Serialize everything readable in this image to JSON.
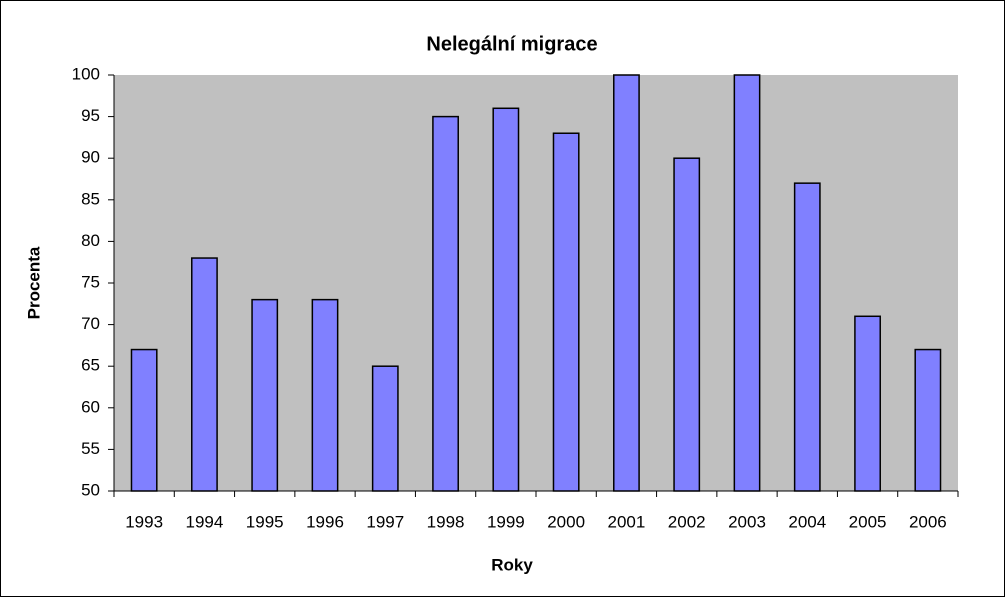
{
  "chart_data": {
    "type": "bar",
    "title": "Nelegální migrace",
    "x_label": "Roky",
    "y_label": "Procenta",
    "categories": [
      "1993",
      "1994",
      "1995",
      "1996",
      "1997",
      "1998",
      "1999",
      "2000",
      "2001",
      "2002",
      "2003",
      "2004",
      "2005",
      "2006"
    ],
    "values": [
      67,
      78,
      73,
      73,
      65,
      95,
      96,
      93,
      100,
      90,
      100,
      87,
      71,
      67
    ],
    "color": "#8080ff",
    "plot_background": "#c0c0c0",
    "ylim": [
      50,
      100
    ],
    "yticks": [
      50,
      55,
      60,
      65,
      70,
      75,
      80,
      85,
      90,
      95,
      100
    ],
    "grid": false
  }
}
